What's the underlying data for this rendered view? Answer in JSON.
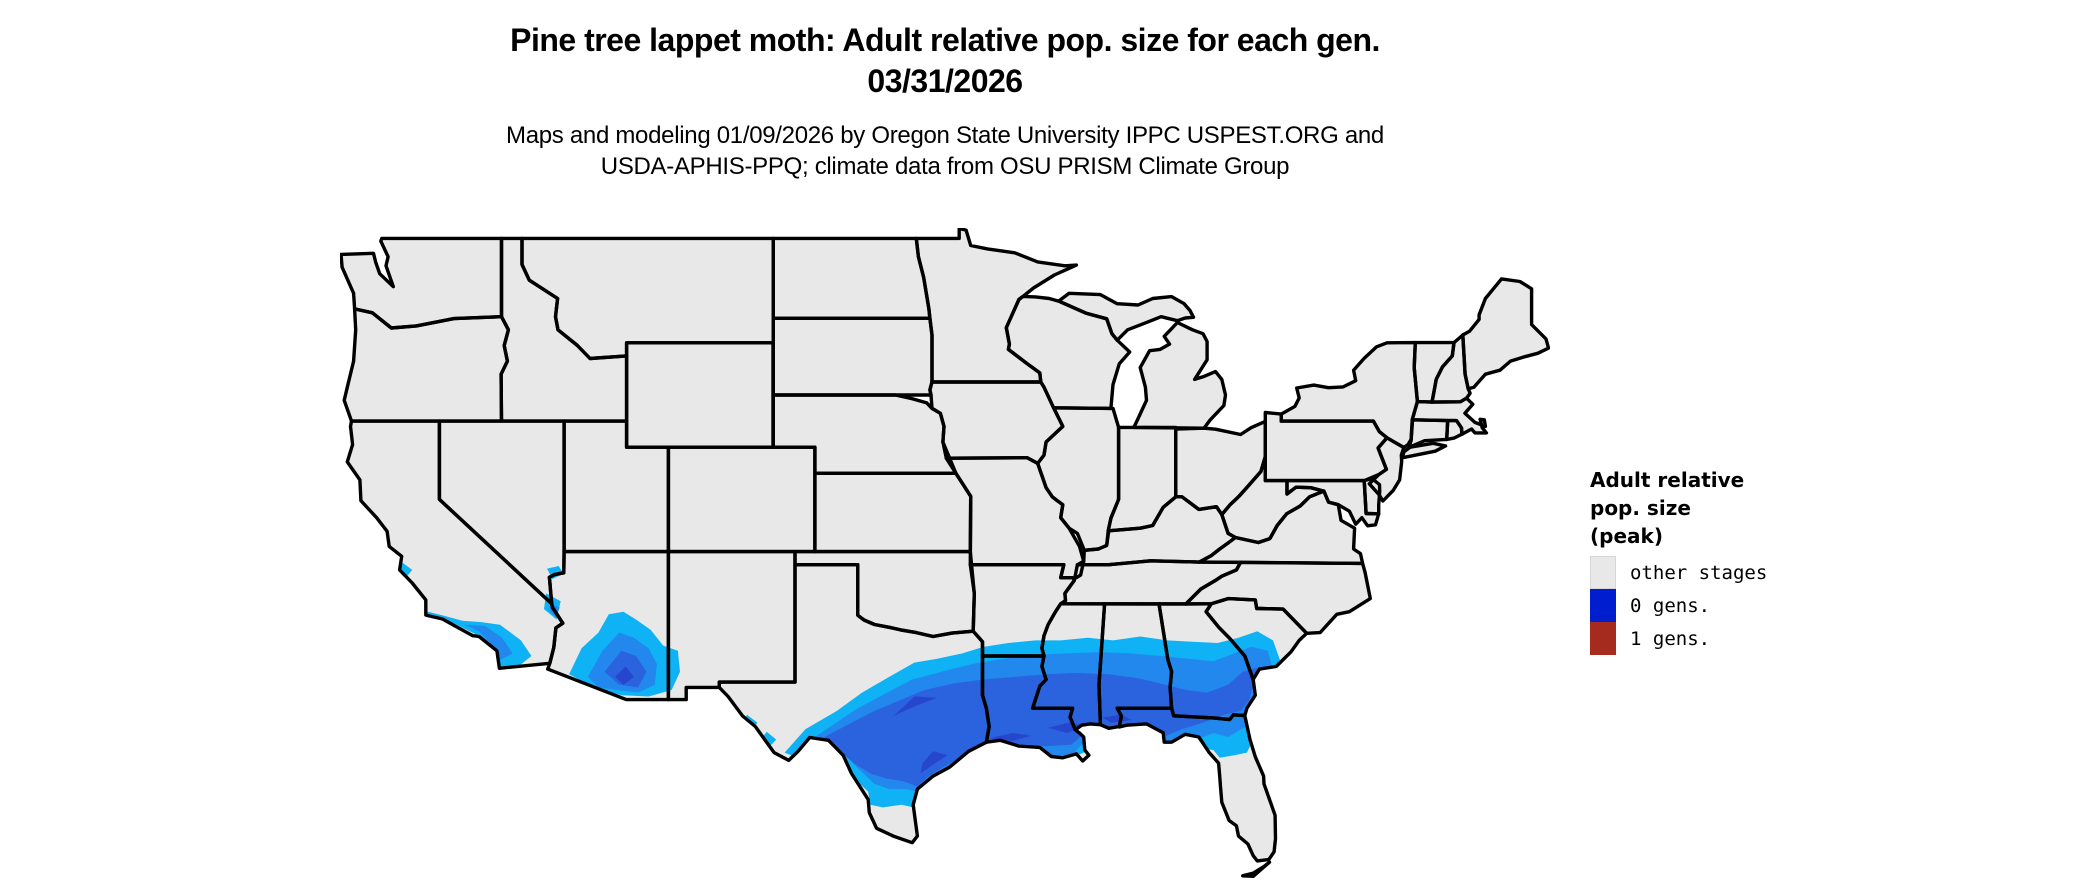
{
  "title": {
    "line1": "Pine tree lappet moth: Adult relative pop. size for each gen.",
    "line2": "03/31/2026"
  },
  "subtitle": {
    "line1": "Maps and modeling 01/09/2026 by Oregon State University IPPC USPEST.ORG and",
    "line2": "USDA-APHIS-PPQ; climate data from OSU PRISM Climate Group"
  },
  "legend": {
    "title_lines": [
      "Adult relative",
      "pop. size",
      "(peak)"
    ],
    "items": [
      {
        "label": "other stages",
        "color": "#E8E8E8"
      },
      {
        "label": "0 gens.",
        "color": "#001ECD"
      },
      {
        "label": "1 gens.",
        "color": "#A52B1E"
      }
    ]
  },
  "map": {
    "type": "us-choropleth-raster",
    "background": "#FFFFFF",
    "base_fill": "#E8E8E8",
    "border_color": "#000000",
    "shading_colors": [
      "#0FB2F5",
      "#2288EE",
      "#2B62DD",
      "#2746CE"
    ],
    "shaded_description": "Blue gradient band (0 gens., peak adult relative pop. size) across the southern US: central and coastal Texas through Louisiana, Mississippi, Alabama, Georgia and the Florida panhandle up to coastal South Carolina; isolated blue areas in coastal southern California, southern Nevada, southern Arizona and far west Texas; far south Texas and the Florida peninsula remain gray (other stages)."
  }
}
